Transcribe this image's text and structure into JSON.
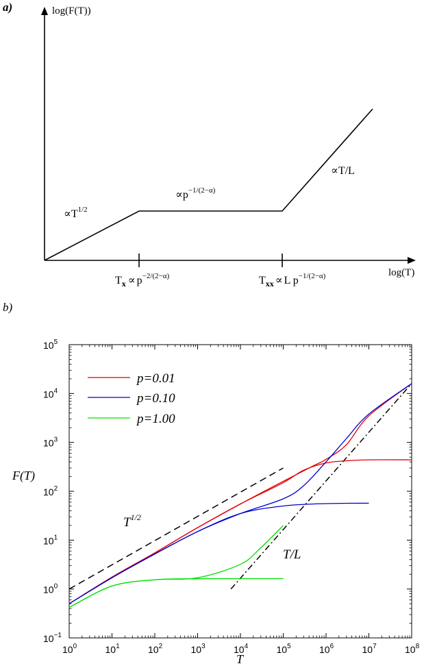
{
  "panel_a": {
    "label": "a)",
    "y_axis_label": "log(F(T))",
    "x_axis_label": "log(T)",
    "regimes": [
      {
        "prop": "∝",
        "base": "T",
        "sup": "1/2"
      },
      {
        "prop": "∝",
        "base": "p",
        "sup": "−1/(2−α)"
      },
      {
        "prop": "∝",
        "base": "T/L",
        "sup": ""
      }
    ],
    "crossovers": [
      {
        "sym": "T",
        "sub": "x",
        "prop": "∝",
        "base": "p",
        "sup": "−2/(2−α)"
      },
      {
        "sym": "T",
        "sub": "xx",
        "prop": "∝",
        "base": "L p",
        "sup": "−1/(2−α)"
      }
    ]
  },
  "panel_b": {
    "label": "b)",
    "annotation_sqrt": {
      "base": "T",
      "sup": "1/2"
    },
    "annotation_linear": "T/L"
  },
  "chart_data": {
    "type": "line",
    "xlabel": "T",
    "ylabel": "F(T)",
    "x_scale": "log",
    "y_scale": "log",
    "xlim": [
      1,
      100000000
    ],
    "ylim": [
      0.1,
      100000
    ],
    "x_ticks": [
      {
        "base": "10",
        "exp": "0"
      },
      {
        "base": "10",
        "exp": "1"
      },
      {
        "base": "10",
        "exp": "2"
      },
      {
        "base": "10",
        "exp": "3"
      },
      {
        "base": "10",
        "exp": "4"
      },
      {
        "base": "10",
        "exp": "5"
      },
      {
        "base": "10",
        "exp": "6"
      },
      {
        "base": "10",
        "exp": "7"
      },
      {
        "base": "10",
        "exp": "8"
      }
    ],
    "y_ticks": [
      {
        "base": "10",
        "exp": "−1"
      },
      {
        "base": "10",
        "exp": "0"
      },
      {
        "base": "10",
        "exp": "1"
      },
      {
        "base": "10",
        "exp": "2"
      },
      {
        "base": "10",
        "exp": "3"
      },
      {
        "base": "10",
        "exp": "4"
      },
      {
        "base": "10",
        "exp": "5"
      }
    ],
    "legend_position": "top-left",
    "colors": {
      "p001": "#e00000",
      "p010": "#0000d0",
      "p100": "#00e000",
      "guide": "#000000"
    },
    "series": [
      {
        "name": "p=0.01",
        "color": "#e00000",
        "points": [
          [
            1,
            0.5
          ],
          [
            10,
            1.75
          ],
          [
            100,
            5.5
          ],
          [
            1000,
            18
          ],
          [
            10000,
            55
          ],
          [
            100000,
            160
          ],
          [
            500000,
            330
          ],
          [
            1000000,
            450
          ],
          [
            3000000,
            900
          ],
          [
            10000000,
            3500
          ],
          [
            100000000,
            16000
          ]
        ]
      },
      {
        "name": "p=0.01",
        "color": "#e00000",
        "points": [
          [
            1,
            0.5
          ],
          [
            10,
            1.75
          ],
          [
            100,
            5.5
          ],
          [
            1000,
            18
          ],
          [
            10000,
            55
          ],
          [
            100000,
            150
          ],
          [
            300000,
            270
          ],
          [
            1000000,
            380
          ],
          [
            3000000,
            420
          ],
          [
            10000000,
            440
          ],
          [
            100000000,
            440
          ]
        ]
      },
      {
        "name": "p=0.10",
        "color": "#0000d0",
        "points": [
          [
            1,
            0.5
          ],
          [
            10,
            1.7
          ],
          [
            100,
            5.2
          ],
          [
            1000,
            15
          ],
          [
            10000,
            35
          ],
          [
            100000,
            70
          ],
          [
            300000,
            130
          ],
          [
            1000000,
            400
          ],
          [
            3000000,
            1200
          ],
          [
            10000000,
            3800
          ],
          [
            100000000,
            16000
          ]
        ]
      },
      {
        "name": "p=0.10",
        "color": "#0000d0",
        "points": [
          [
            1,
            0.5
          ],
          [
            10,
            1.7
          ],
          [
            100,
            5.2
          ],
          [
            1000,
            15
          ],
          [
            10000,
            35
          ],
          [
            100000,
            50
          ],
          [
            1000000,
            56
          ],
          [
            10000000,
            57
          ]
        ]
      },
      {
        "name": "p=1.00",
        "color": "#00e000",
        "points": [
          [
            1,
            0.42
          ],
          [
            10,
            1.15
          ],
          [
            100,
            1.55
          ],
          [
            1000,
            1.7
          ],
          [
            10000,
            3.2
          ],
          [
            30000,
            7
          ],
          [
            100000,
            20
          ]
        ]
      },
      {
        "name": "p=1.00",
        "color": "#00e000",
        "points": [
          [
            1,
            0.42
          ],
          [
            10,
            1.15
          ],
          [
            100,
            1.55
          ],
          [
            1000,
            1.62
          ],
          [
            10000,
            1.63
          ],
          [
            100000,
            1.63
          ]
        ]
      }
    ],
    "guides": [
      {
        "style": "dashed",
        "points": [
          [
            1,
            1
          ],
          [
            100000,
            300
          ]
        ]
      },
      {
        "style": "dashdot",
        "points": [
          [
            6000,
            1
          ],
          [
            100000000,
            16000
          ]
        ]
      }
    ]
  }
}
